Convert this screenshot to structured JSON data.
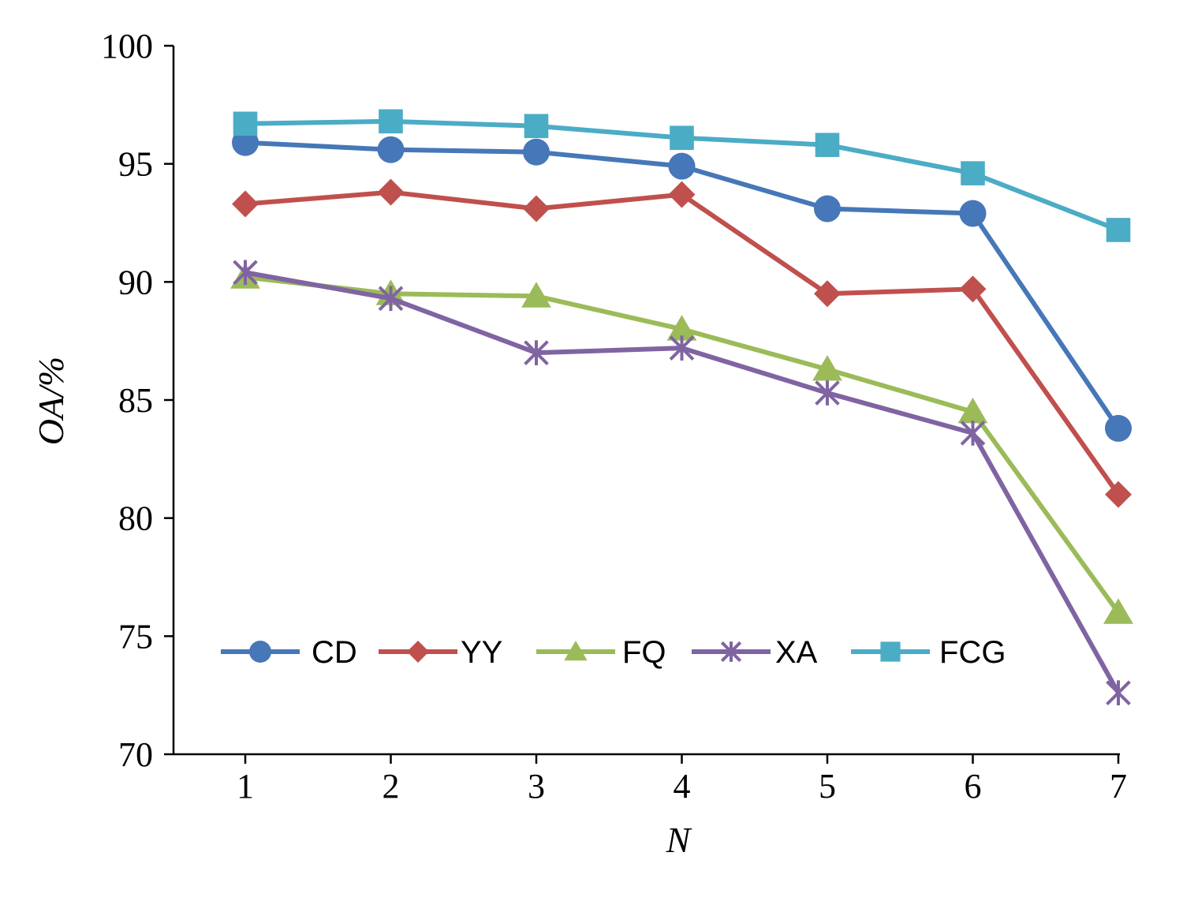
{
  "chart_data": {
    "type": "line",
    "xlabel": "N",
    "ylabel": "OA/%",
    "x": [
      1,
      2,
      3,
      4,
      5,
      6,
      7
    ],
    "ylim": [
      70,
      100
    ],
    "yticks": [
      70,
      75,
      80,
      85,
      90,
      95,
      100
    ],
    "legend_position": "bottom-center",
    "grid": false,
    "series": [
      {
        "name": "CD",
        "marker": "circle",
        "color": "#4677b8",
        "values": [
          95.9,
          95.6,
          95.5,
          94.9,
          93.1,
          92.9,
          83.8
        ]
      },
      {
        "name": "YY",
        "marker": "diamond",
        "color": "#c0504d",
        "values": [
          93.3,
          93.8,
          93.1,
          93.7,
          89.5,
          89.7,
          81.0
        ]
      },
      {
        "name": "FQ",
        "marker": "triangle",
        "color": "#9bbb59",
        "values": [
          90.2,
          89.5,
          89.4,
          88.0,
          86.3,
          84.5,
          76.0
        ]
      },
      {
        "name": "XA",
        "marker": "star",
        "color": "#8064a2",
        "values": [
          90.4,
          89.3,
          87.0,
          87.2,
          85.3,
          83.6,
          72.6
        ]
      },
      {
        "name": "FCG",
        "marker": "square",
        "color": "#4bacc6",
        "values": [
          96.7,
          96.8,
          96.6,
          96.1,
          95.8,
          94.6,
          92.2
        ]
      }
    ]
  }
}
